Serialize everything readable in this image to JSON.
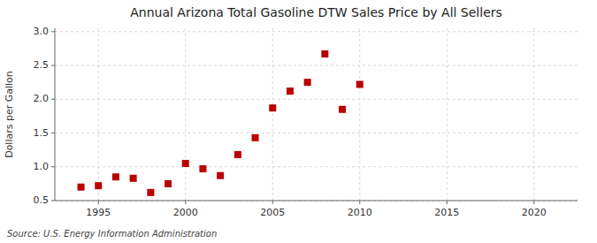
{
  "chart_data": {
    "type": "scatter",
    "title": "Annual Arizona Total Gasoline DTW Sales Price by All Sellers",
    "y_label": "Dollars per Gallon",
    "annotations": [
      "Source: U.S. Energy Information Administration"
    ],
    "x": [
      1994,
      1995,
      1996,
      1997,
      1998,
      1999,
      2000,
      2001,
      2002,
      2003,
      2004,
      2005,
      2006,
      2007,
      2008,
      2009,
      2010
    ],
    "values": [
      0.7,
      0.72,
      0.85,
      0.83,
      0.62,
      0.75,
      1.05,
      0.97,
      0.87,
      1.18,
      1.43,
      1.87,
      2.12,
      2.25,
      2.67,
      1.85,
      2.22
    ],
    "color": "#bb0000",
    "marker": "square",
    "xlim": [
      1992.5,
      2022.5
    ],
    "ylim": [
      0.5,
      3.05
    ],
    "xticks": [
      1995,
      2000,
      2005,
      2010,
      2015,
      2020
    ],
    "yticks": [
      0.5,
      {
        "value": 1.0,
        "label": "1.0"
      },
      1.5,
      {
        "value": 2.0,
        "label": "2.0"
      },
      2.5,
      {
        "value": 3.0,
        "label": "3.0"
      }
    ],
    "grid": true
  }
}
